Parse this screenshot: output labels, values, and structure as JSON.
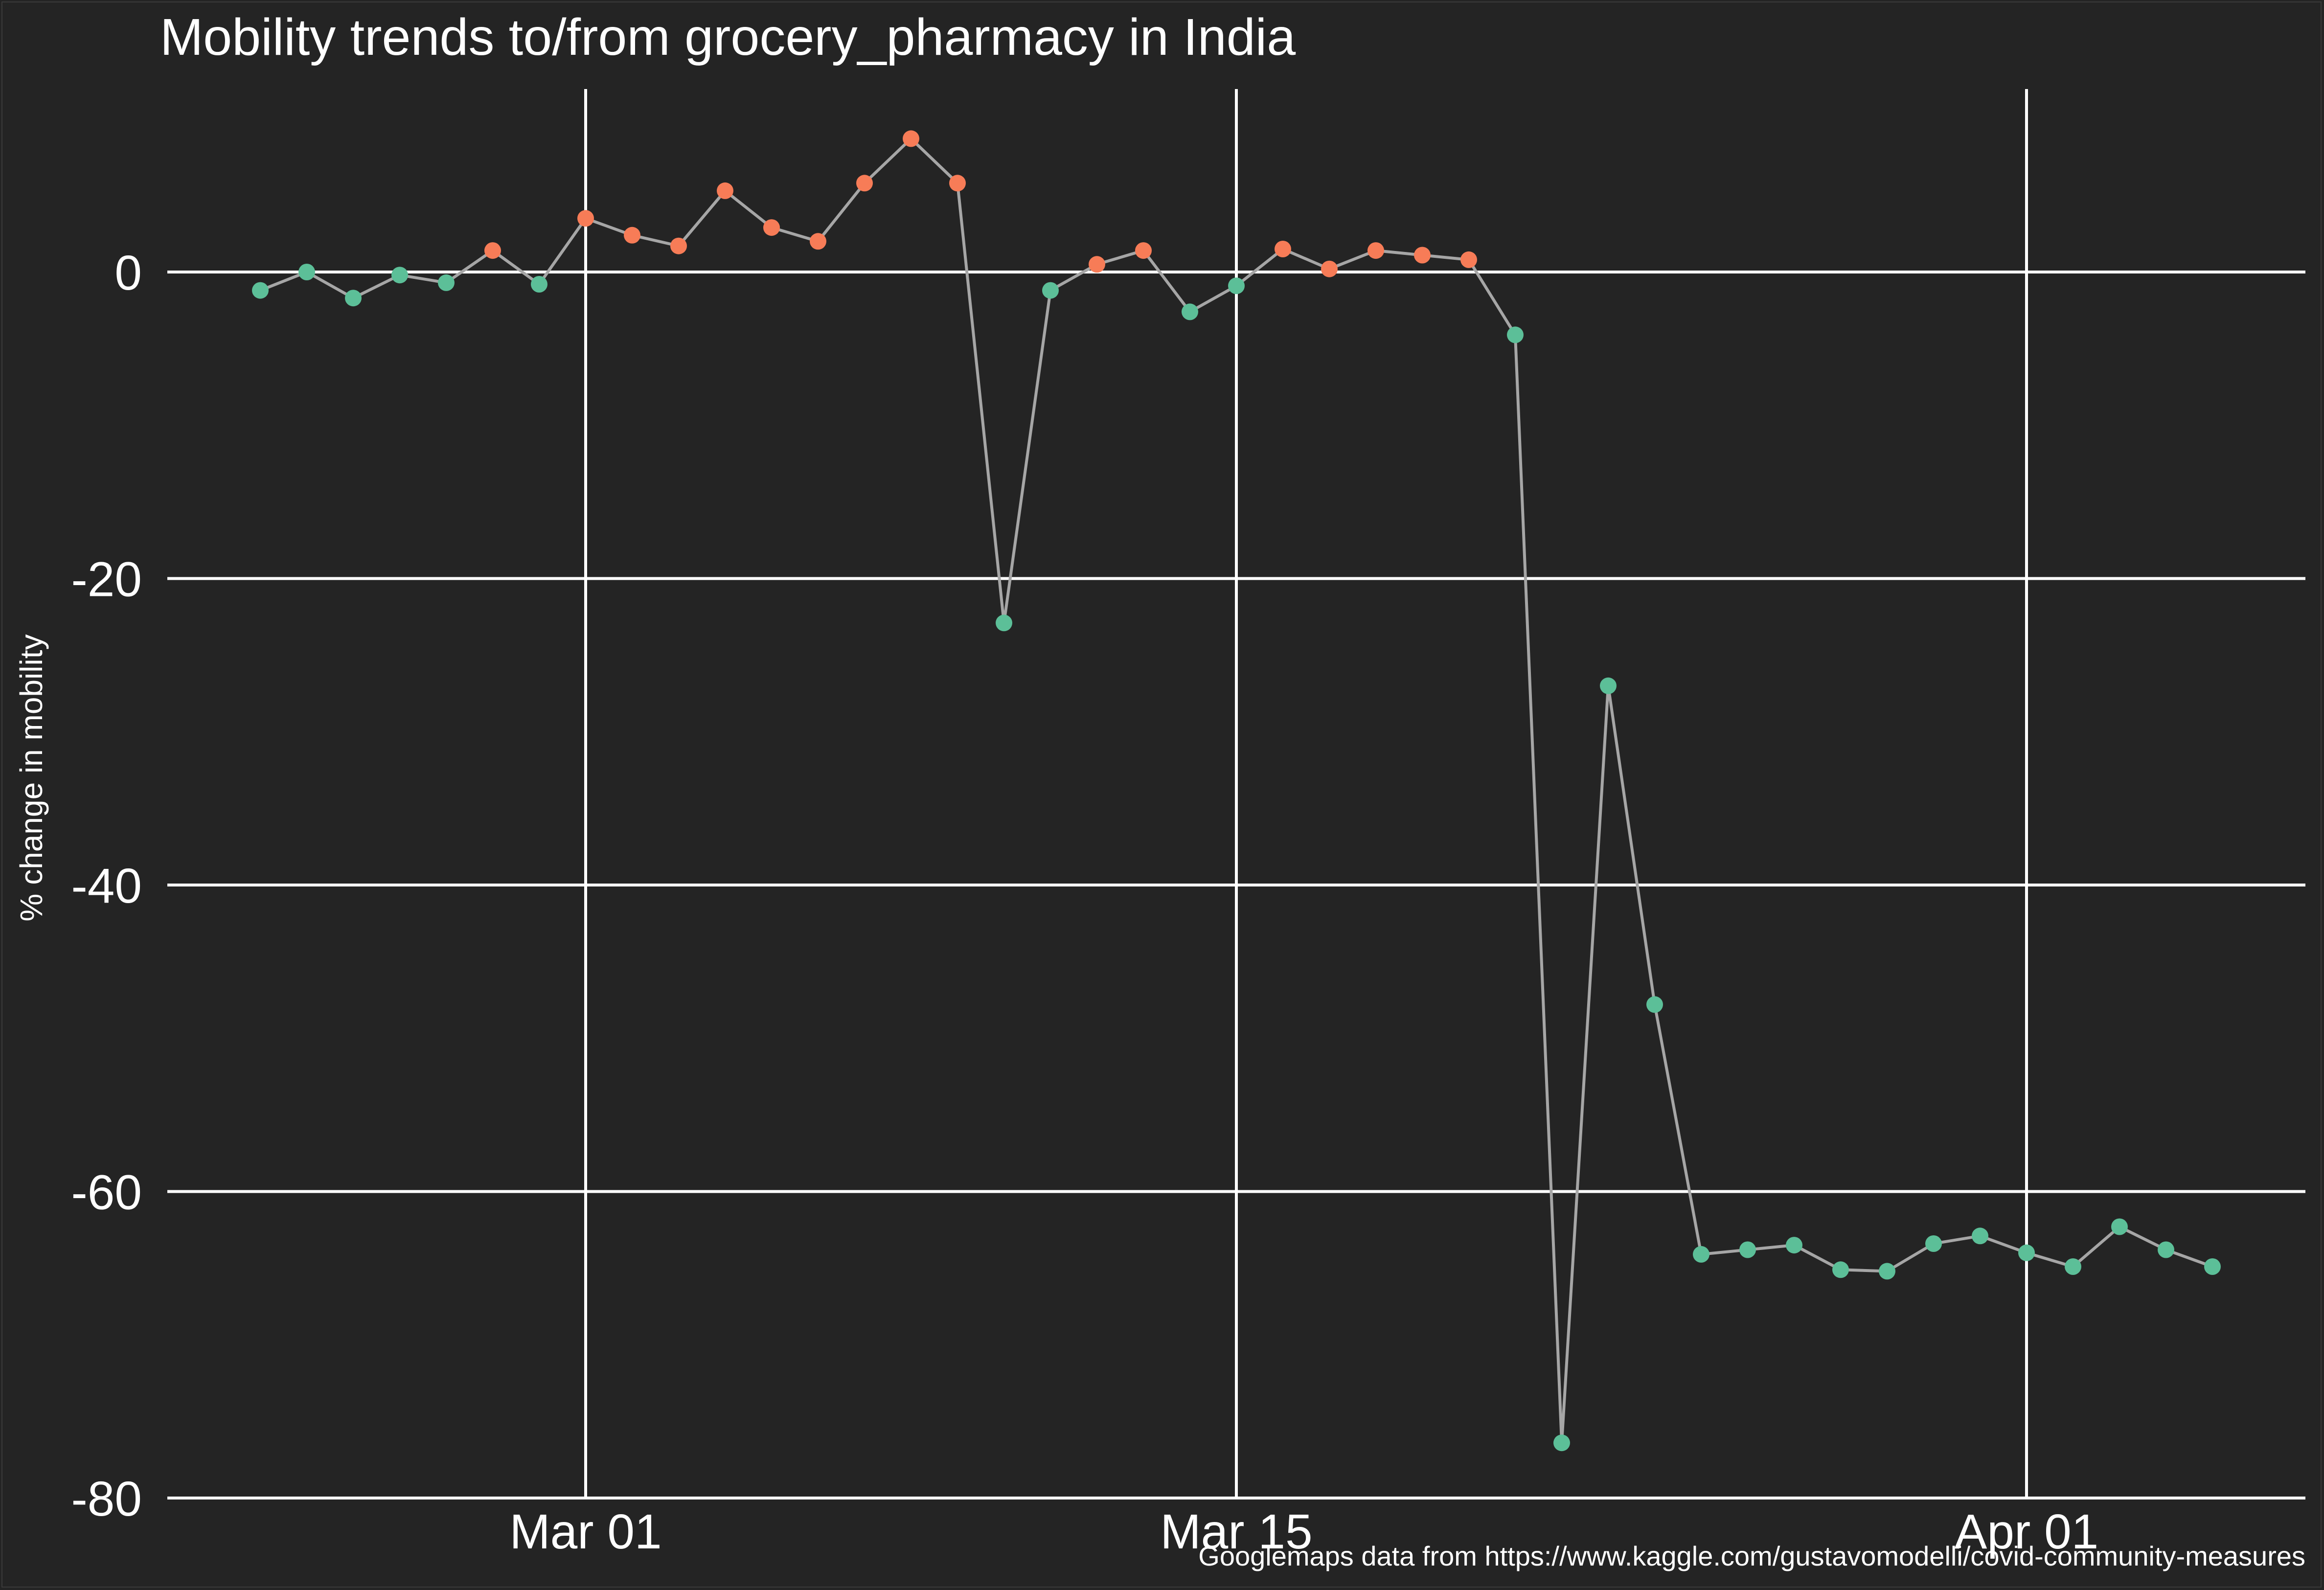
{
  "chart_data": {
    "type": "line",
    "title": "Mobility trends to/from grocery_pharmacy in India",
    "xlabel": "",
    "ylabel": "% change in mobility",
    "caption": "Googlemaps data from https://www.kaggle.com/gustavomodelli/covid-community-measures",
    "ylim": [
      -80,
      12.8
    ],
    "xlim": [
      "2020-02-21",
      "2020-04-07"
    ],
    "grid": true,
    "legend": "none",
    "colors": {
      "background": "#242424",
      "line": "#a6a6a6",
      "grid": "#ffffff",
      "above_zero": "#f77c57",
      "below_zero": "#5cbf98"
    },
    "x_ticks": [
      {
        "date": "2020-03-01",
        "label": "Mar 01"
      },
      {
        "date": "2020-03-15",
        "label": "Mar 15"
      },
      {
        "date": "2020-04-01",
        "label": "Apr 01"
      }
    ],
    "y_ticks": [
      {
        "value": 0,
        "label": "0"
      },
      {
        "value": -20,
        "label": "-20"
      },
      {
        "value": -40,
        "label": "-40"
      },
      {
        "value": -60,
        "label": "-60"
      },
      {
        "value": -80,
        "label": "-80"
      }
    ],
    "series": [
      {
        "points": [
          {
            "date": "2020-02-23",
            "y": -1.2
          },
          {
            "date": "2020-02-24",
            "y": 0.0
          },
          {
            "date": "2020-02-25",
            "y": -1.7
          },
          {
            "date": "2020-02-26",
            "y": -0.2
          },
          {
            "date": "2020-02-27",
            "y": -0.7
          },
          {
            "date": "2020-02-28",
            "y": 1.4
          },
          {
            "date": "2020-02-29",
            "y": -0.8
          },
          {
            "date": "2020-03-01",
            "y": 3.5
          },
          {
            "date": "2020-03-02",
            "y": 2.4
          },
          {
            "date": "2020-03-03",
            "y": 1.7
          },
          {
            "date": "2020-03-04",
            "y": 5.3
          },
          {
            "date": "2020-03-05",
            "y": 2.9
          },
          {
            "date": "2020-03-06",
            "y": 2.0
          },
          {
            "date": "2020-03-07",
            "y": 5.8
          },
          {
            "date": "2020-03-08",
            "y": 8.7
          },
          {
            "date": "2020-03-09",
            "y": 5.8
          },
          {
            "date": "2020-03-10",
            "y": -22.9
          },
          {
            "date": "2020-03-11",
            "y": -1.2
          },
          {
            "date": "2020-03-12",
            "y": 0.5
          },
          {
            "date": "2020-03-13",
            "y": 1.4
          },
          {
            "date": "2020-03-14",
            "y": -2.6
          },
          {
            "date": "2020-03-15",
            "y": -0.9
          },
          {
            "date": "2020-03-16",
            "y": 1.5
          },
          {
            "date": "2020-03-17",
            "y": 0.2
          },
          {
            "date": "2020-03-18",
            "y": 1.4
          },
          {
            "date": "2020-03-19",
            "y": 1.1
          },
          {
            "date": "2020-03-20",
            "y": 0.8
          },
          {
            "date": "2020-03-21",
            "y": -4.1
          },
          {
            "date": "2020-03-22",
            "y": -76.4
          },
          {
            "date": "2020-03-23",
            "y": -27.0
          },
          {
            "date": "2020-03-24",
            "y": -47.8
          },
          {
            "date": "2020-03-25",
            "y": -64.1
          },
          {
            "date": "2020-03-26",
            "y": -63.8
          },
          {
            "date": "2020-03-27",
            "y": -63.5
          },
          {
            "date": "2020-03-28",
            "y": -65.1
          },
          {
            "date": "2020-03-29",
            "y": -65.2
          },
          {
            "date": "2020-03-30",
            "y": -63.4
          },
          {
            "date": "2020-03-31",
            "y": -62.9
          },
          {
            "date": "2020-04-01",
            "y": -64.0
          },
          {
            "date": "2020-04-02",
            "y": -64.9
          },
          {
            "date": "2020-04-03",
            "y": -62.3
          },
          {
            "date": "2020-04-04",
            "y": -63.8
          },
          {
            "date": "2020-04-05",
            "y": -64.9
          }
        ]
      }
    ]
  }
}
